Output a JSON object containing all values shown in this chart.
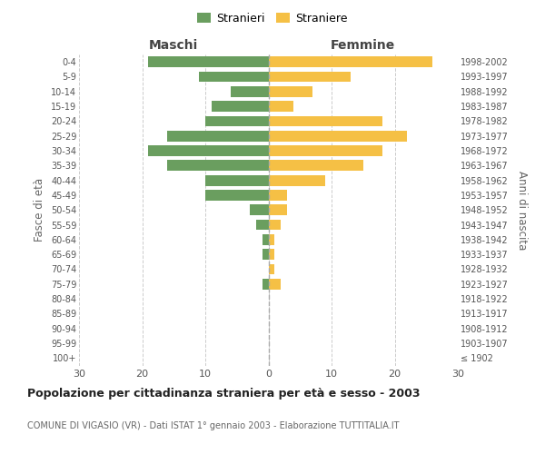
{
  "age_groups": [
    "100+",
    "95-99",
    "90-94",
    "85-89",
    "80-84",
    "75-79",
    "70-74",
    "65-69",
    "60-64",
    "55-59",
    "50-54",
    "45-49",
    "40-44",
    "35-39",
    "30-34",
    "25-29",
    "20-24",
    "15-19",
    "10-14",
    "5-9",
    "0-4"
  ],
  "birth_years": [
    "≤ 1902",
    "1903-1907",
    "1908-1912",
    "1913-1917",
    "1918-1922",
    "1923-1927",
    "1928-1932",
    "1933-1937",
    "1938-1942",
    "1943-1947",
    "1948-1952",
    "1953-1957",
    "1958-1962",
    "1963-1967",
    "1968-1972",
    "1973-1977",
    "1978-1982",
    "1983-1987",
    "1988-1992",
    "1993-1997",
    "1998-2002"
  ],
  "maschi": [
    0,
    0,
    0,
    0,
    0,
    1,
    0,
    1,
    1,
    2,
    3,
    10,
    10,
    16,
    19,
    16,
    10,
    9,
    6,
    11,
    19
  ],
  "femmine": [
    0,
    0,
    0,
    0,
    0,
    2,
    1,
    1,
    1,
    2,
    3,
    3,
    9,
    15,
    18,
    22,
    18,
    4,
    7,
    13,
    26
  ],
  "maschi_color": "#6a9e5f",
  "femmine_color": "#f5c045",
  "background_color": "#ffffff",
  "grid_color": "#cccccc",
  "title": "Popolazione per cittadinanza straniera per età e sesso - 2003",
  "subtitle": "COMUNE DI VIGASIO (VR) - Dati ISTAT 1° gennaio 2003 - Elaborazione TUTTITALIA.IT",
  "ylabel_left": "Fasce di età",
  "ylabel_right": "Anni di nascita",
  "label_maschi": "Maschi",
  "label_femmine": "Femmine",
  "legend_stranieri": "Stranieri",
  "legend_straniere": "Straniere",
  "xlim": 30,
  "bar_height": 0.72
}
